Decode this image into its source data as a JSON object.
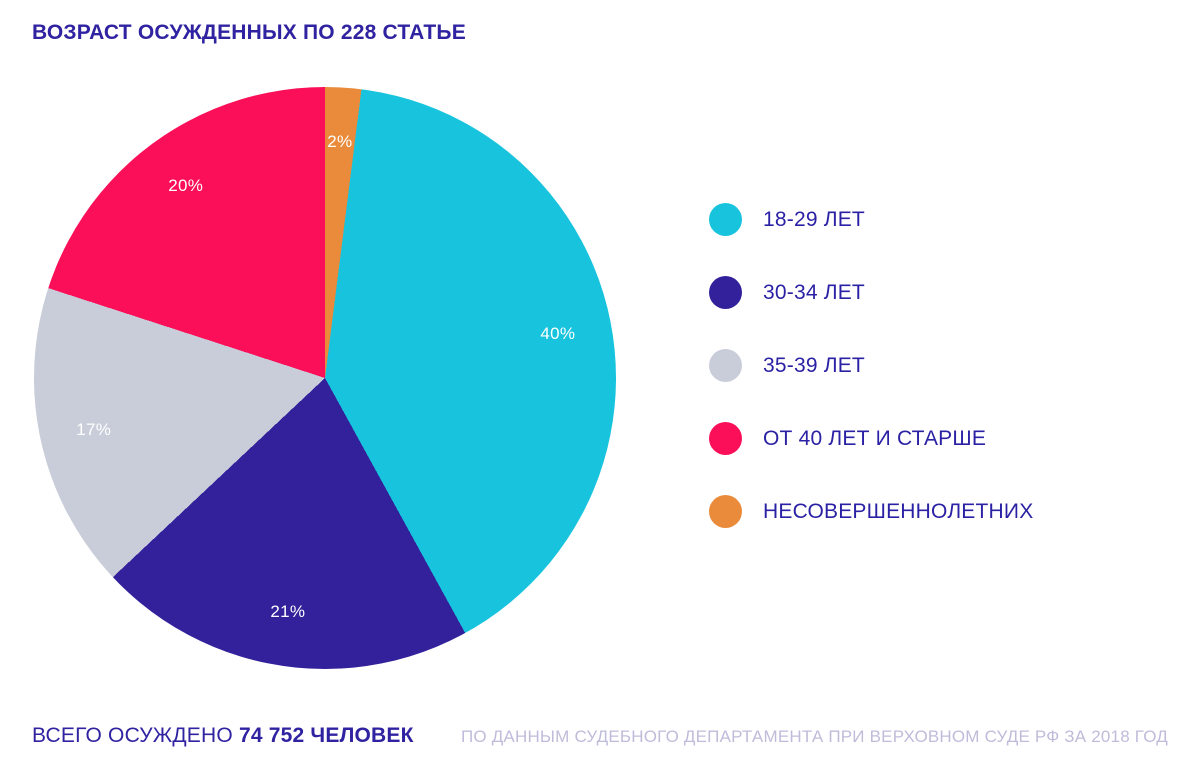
{
  "title": "ВОЗРАСТ ОСУЖДЕННЫХ ПО 228 СТАТЬЕ",
  "chart_data": {
    "type": "pie",
    "title": "ВОЗРАСТ ОСУЖДЕННЫХ ПО 228 СТАТЬЕ",
    "unit": "percent",
    "slices": [
      {
        "label": "18-29 ЛЕТ",
        "value": 40,
        "display": "40%",
        "color": "#17C3DD"
      },
      {
        "label": "30-34 ЛЕТ",
        "value": 21,
        "display": "21%",
        "color": "#32219B"
      },
      {
        "label": "35-39 ЛЕТ",
        "value": 17,
        "display": "17%",
        "color": "#C8CDD9"
      },
      {
        "label": "ОТ 40 ЛЕТ И СТАРШЕ",
        "value": 20,
        "display": "20%",
        "color": "#FA0F58"
      },
      {
        "label": "НЕСОВЕРШЕННОЛЕТНИХ",
        "value": 2,
        "display": "2%",
        "color": "#E98B3A"
      }
    ],
    "draw_order": [
      4,
      0,
      1,
      2,
      3
    ],
    "start_angle_deg": 0,
    "direction": "clockwise",
    "legend_position": "right",
    "slice_label_color": "#FFFFFF",
    "slice_label_radius_px": 237,
    "pie_radius_px": 291
  },
  "footer": {
    "total_prefix": "ВСЕГО ОСУЖДЕНО",
    "total_value": "74 752 ЧЕЛОВЕК",
    "source": "ПО ДАННЫМ СУДЕБНОГО ДЕПАРТАМЕНТА ПРИ ВЕРХОВНОМ СУДЕ РФ ЗА 2018 ГОД"
  },
  "colors": {
    "accent_text": "#3023A1",
    "muted_text": "#BFBCDA",
    "background": "#FFFFFF"
  }
}
